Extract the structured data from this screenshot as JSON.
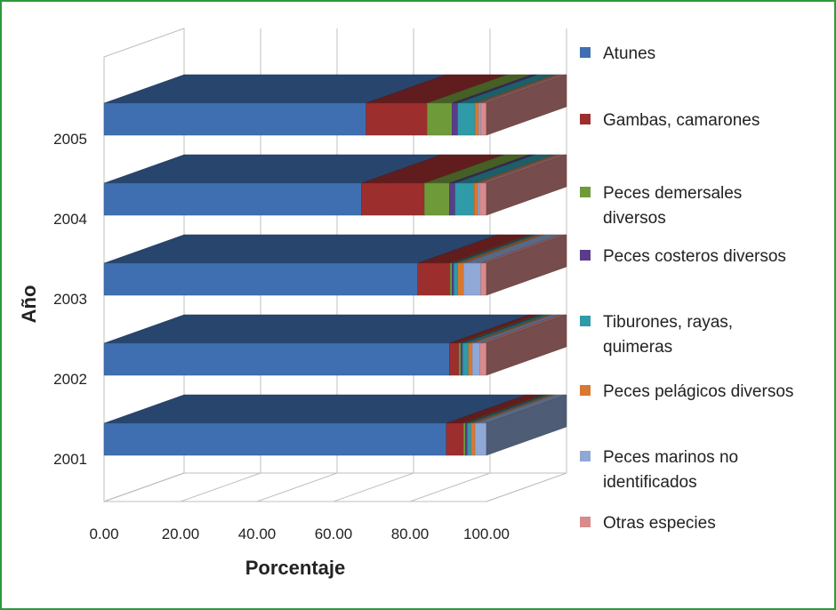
{
  "chart_data": {
    "type": "bar",
    "orientation": "horizontal",
    "stacked": true,
    "projection": "3d",
    "title": "",
    "xlabel": "Porcentaje",
    "ylabel": "Año",
    "xlim": [
      0,
      100
    ],
    "xticks": [
      "0.00",
      "20.00",
      "40.00",
      "60.00",
      "80.00",
      "100.00"
    ],
    "categories": [
      "2001",
      "2002",
      "2003",
      "2004",
      "2005"
    ],
    "series": [
      {
        "name": "Atunes",
        "color": "#3f6fb0",
        "values": [
          89.5,
          90.3,
          82.0,
          67.3,
          68.5
        ]
      },
      {
        "name": "Gambas, camarones",
        "color": "#9c2e2e",
        "values": [
          4.5,
          2.5,
          8.5,
          16.5,
          16.0
        ]
      },
      {
        "name": "Peces demersales diversos",
        "color": "#6f9a3a",
        "values": [
          0.5,
          0.5,
          0.5,
          6.5,
          6.5
        ]
      },
      {
        "name": "Peces costeros diversos",
        "color": "#5a3d8a",
        "values": [
          0.5,
          0.5,
          0.5,
          1.5,
          1.5
        ]
      },
      {
        "name": "Tiburones, rayas, quimeras",
        "color": "#2f9aa8",
        "values": [
          1.0,
          1.5,
          1.0,
          5.0,
          4.5
        ]
      },
      {
        "name": "Peces pelágicos diversos",
        "color": "#d9782f",
        "values": [
          1.0,
          1.0,
          1.5,
          1.0,
          1.0
        ]
      },
      {
        "name": "Peces marinos no identificados",
        "color": "#8fa8d6",
        "values": [
          3.0,
          2.0,
          4.5,
          0.5,
          0.5
        ]
      },
      {
        "name": "Otras especies",
        "color": "#d98a8a",
        "values": [
          0,
          1.7,
          1.5,
          1.7,
          1.5
        ]
      }
    ],
    "legend": {
      "position": "right",
      "labels": [
        [
          "Atunes"
        ],
        [
          "Gambas, camarones"
        ],
        [
          "Peces demersales",
          "diversos"
        ],
        [
          "Peces costeros diversos"
        ],
        [
          "Tiburones, rayas,",
          "quimeras"
        ],
        [
          " Peces pelágicos diversos"
        ],
        [
          " Peces marinos no",
          "identificados"
        ],
        [
          "Otras especies"
        ]
      ]
    },
    "grid": true
  }
}
